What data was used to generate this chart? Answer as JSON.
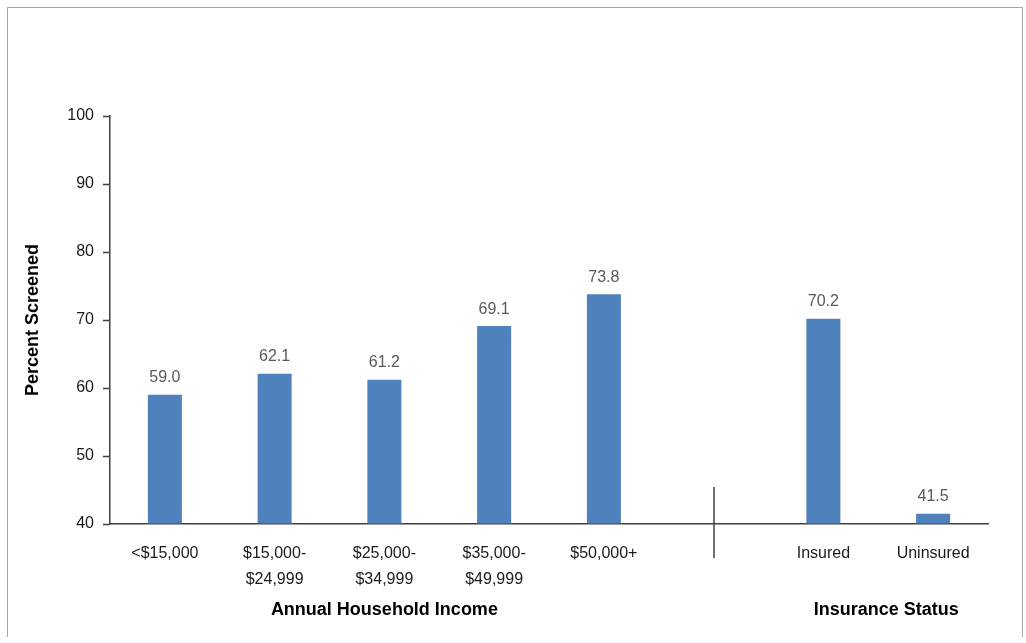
{
  "chart_data": {
    "type": "bar",
    "categories": [
      "<$15,000",
      "$15,000-$24,999",
      "$25,000-$34,999",
      "$35,000-$49,999",
      "$50,000+",
      null,
      "Insured",
      "Uninsured"
    ],
    "values": [
      59.0,
      62.1,
      61.2,
      69.1,
      73.8,
      null,
      70.2,
      41.5
    ],
    "value_labels": [
      "59.0",
      "62.1",
      "61.2",
      "69.1",
      "73.8",
      null,
      "70.2",
      "41.5"
    ],
    "color": "#4f81bd",
    "ylim": [
      40,
      100
    ],
    "yticks": [
      40,
      50,
      60,
      70,
      80,
      90,
      100
    ],
    "ylabel": "Percent Screened",
    "xlabel": "Annual Household Income",
    "annotations": [
      "Insurance Status"
    ],
    "grid": false,
    "legend": false
  }
}
